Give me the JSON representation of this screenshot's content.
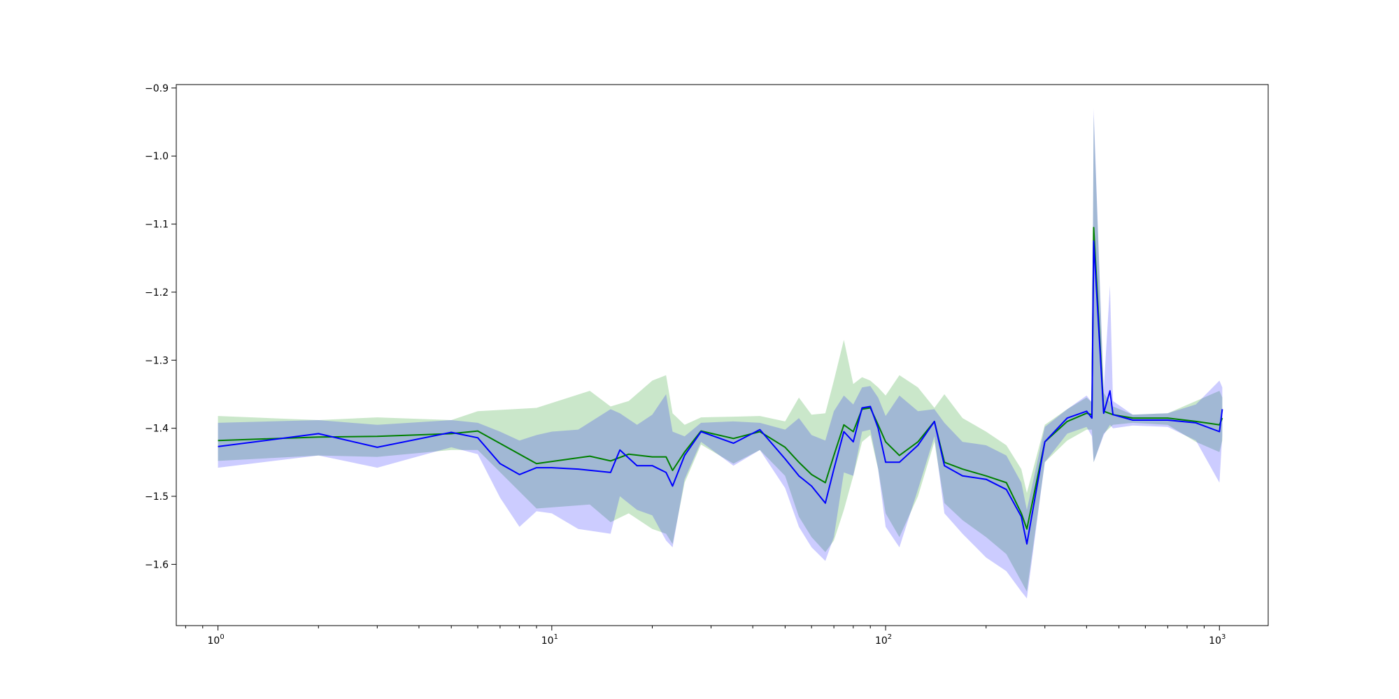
{
  "chart_data": {
    "type": "line",
    "title": "",
    "xlabel": "",
    "ylabel": "",
    "x_scale": "log",
    "xlim": [
      0.75,
      1400
    ],
    "ylim": [
      -1.69,
      -0.895
    ],
    "grid": false,
    "legend": "none",
    "x_ticks": [
      {
        "value": 1,
        "base": "10",
        "exp": "0"
      },
      {
        "value": 10,
        "base": "10",
        "exp": "1"
      },
      {
        "value": 100,
        "base": "10",
        "exp": "2"
      },
      {
        "value": 1000,
        "base": "10",
        "exp": "3"
      }
    ],
    "y_ticks": [
      {
        "value": -0.9,
        "label": "−0.9"
      },
      {
        "value": -1.0,
        "label": "−1.0"
      },
      {
        "value": -1.1,
        "label": "−1.1"
      },
      {
        "value": -1.2,
        "label": "−1.2"
      },
      {
        "value": -1.3,
        "label": "−1.3"
      },
      {
        "value": -1.4,
        "label": "−1.4"
      },
      {
        "value": -1.5,
        "label": "−1.5"
      },
      {
        "value": -1.6,
        "label": "−1.6"
      }
    ],
    "series": [
      {
        "color": "#008000",
        "band_color": "#2ca02c",
        "band_opacity": 0.25,
        "x": [
          1,
          2,
          3,
          5,
          6,
          9,
          13,
          15,
          17,
          20,
          22,
          23,
          25,
          28,
          35,
          42,
          50,
          55,
          60,
          66,
          70,
          75,
          80,
          85,
          90,
          95,
          100,
          110,
          125,
          140,
          150,
          170,
          200,
          230,
          255,
          265,
          300,
          350,
          400,
          415,
          420,
          450,
          480,
          550,
          700,
          850,
          1000,
          1020
        ],
        "y": [
          -1.418,
          -1.413,
          -1.412,
          -1.408,
          -1.404,
          -1.452,
          -1.441,
          -1.448,
          -1.438,
          -1.442,
          -1.442,
          -1.462,
          -1.435,
          -1.404,
          -1.415,
          -1.405,
          -1.428,
          -1.45,
          -1.468,
          -1.48,
          -1.44,
          -1.395,
          -1.405,
          -1.372,
          -1.37,
          -1.395,
          -1.42,
          -1.44,
          -1.42,
          -1.39,
          -1.45,
          -1.46,
          -1.47,
          -1.48,
          -1.525,
          -1.548,
          -1.42,
          -1.39,
          -1.378,
          -1.38,
          -1.105,
          -1.375,
          -1.38,
          -1.385,
          -1.385,
          -1.39,
          -1.395,
          -1.385
        ],
        "upper": [
          -1.382,
          -1.388,
          -1.384,
          -1.388,
          -1.375,
          -1.37,
          -1.345,
          -1.368,
          -1.36,
          -1.33,
          -1.322,
          -1.378,
          -1.395,
          -1.384,
          -1.383,
          -1.382,
          -1.39,
          -1.355,
          -1.38,
          -1.378,
          -1.33,
          -1.27,
          -1.335,
          -1.325,
          -1.33,
          -1.34,
          -1.352,
          -1.322,
          -1.34,
          -1.37,
          -1.35,
          -1.385,
          -1.405,
          -1.425,
          -1.46,
          -1.495,
          -1.395,
          -1.372,
          -1.355,
          -1.362,
          -0.94,
          -1.348,
          -1.368,
          -1.38,
          -1.378,
          -1.36,
          -1.345,
          -1.355
        ],
        "lower": [
          -1.448,
          -1.44,
          -1.442,
          -1.432,
          -1.432,
          -1.518,
          -1.512,
          -1.538,
          -1.525,
          -1.548,
          -1.555,
          -1.57,
          -1.48,
          -1.424,
          -1.452,
          -1.432,
          -1.47,
          -1.53,
          -1.56,
          -1.582,
          -1.565,
          -1.52,
          -1.47,
          -1.42,
          -1.41,
          -1.46,
          -1.525,
          -1.56,
          -1.5,
          -1.42,
          -1.51,
          -1.535,
          -1.56,
          -1.585,
          -1.625,
          -1.64,
          -1.45,
          -1.418,
          -1.402,
          -1.402,
          -1.45,
          -1.408,
          -1.395,
          -1.392,
          -1.395,
          -1.42,
          -1.435,
          -1.418
        ]
      },
      {
        "color": "#0000ff",
        "band_color": "#0000ff",
        "band_opacity": 0.2,
        "x": [
          1,
          2,
          3,
          5,
          6,
          7,
          8,
          9,
          10,
          12,
          15,
          16,
          18,
          20,
          22,
          23,
          25,
          28,
          35,
          42,
          50,
          55,
          60,
          66,
          70,
          75,
          80,
          85,
          90,
          95,
          100,
          110,
          125,
          140,
          150,
          170,
          200,
          230,
          255,
          265,
          300,
          350,
          400,
          415,
          420,
          450,
          470,
          480,
          550,
          700,
          850,
          1000,
          1020
        ],
        "y": [
          -1.427,
          -1.408,
          -1.428,
          -1.406,
          -1.414,
          -1.452,
          -1.468,
          -1.458,
          -1.458,
          -1.46,
          -1.465,
          -1.432,
          -1.455,
          -1.455,
          -1.465,
          -1.485,
          -1.44,
          -1.405,
          -1.422,
          -1.402,
          -1.445,
          -1.47,
          -1.485,
          -1.51,
          -1.46,
          -1.405,
          -1.42,
          -1.37,
          -1.368,
          -1.4,
          -1.45,
          -1.45,
          -1.425,
          -1.39,
          -1.455,
          -1.47,
          -1.475,
          -1.49,
          -1.53,
          -1.57,
          -1.42,
          -1.385,
          -1.375,
          -1.385,
          -1.125,
          -1.378,
          -1.345,
          -1.38,
          -1.388,
          -1.388,
          -1.392,
          -1.405,
          -1.372
        ],
        "upper": [
          -1.392,
          -1.388,
          -1.395,
          -1.388,
          -1.392,
          -1.405,
          -1.418,
          -1.41,
          -1.405,
          -1.402,
          -1.372,
          -1.378,
          -1.395,
          -1.38,
          -1.35,
          -1.405,
          -1.412,
          -1.392,
          -1.39,
          -1.392,
          -1.402,
          -1.385,
          -1.41,
          -1.418,
          -1.375,
          -1.352,
          -1.365,
          -1.34,
          -1.338,
          -1.355,
          -1.382,
          -1.352,
          -1.375,
          -1.372,
          -1.392,
          -1.42,
          -1.425,
          -1.44,
          -1.48,
          -1.52,
          -1.398,
          -1.372,
          -1.352,
          -1.362,
          -0.93,
          -1.345,
          -1.19,
          -1.36,
          -1.38,
          -1.378,
          -1.365,
          -1.33,
          -1.34
        ],
        "lower": [
          -1.458,
          -1.44,
          -1.458,
          -1.428,
          -1.438,
          -1.502,
          -1.545,
          -1.522,
          -1.525,
          -1.548,
          -1.555,
          -1.5,
          -1.52,
          -1.528,
          -1.565,
          -1.575,
          -1.475,
          -1.42,
          -1.455,
          -1.432,
          -1.488,
          -1.545,
          -1.575,
          -1.595,
          -1.56,
          -1.465,
          -1.47,
          -1.405,
          -1.402,
          -1.46,
          -1.545,
          -1.575,
          -1.49,
          -1.412,
          -1.525,
          -1.555,
          -1.59,
          -1.61,
          -1.64,
          -1.65,
          -1.45,
          -1.408,
          -1.398,
          -1.412,
          -1.45,
          -1.41,
          -1.395,
          -1.4,
          -1.396,
          -1.398,
          -1.418,
          -1.48,
          -1.41
        ]
      }
    ]
  }
}
